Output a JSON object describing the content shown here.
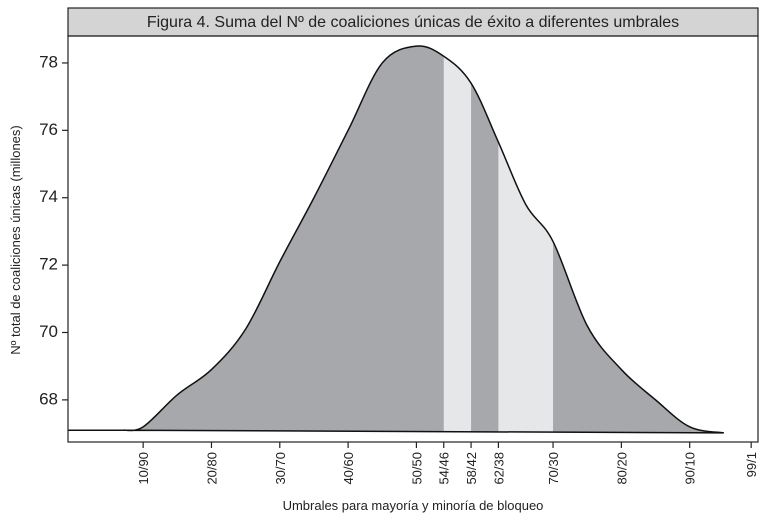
{
  "chart_data": {
    "type": "area",
    "title": "Figura 4. Suma del Nº de coaliciones únicas de éxito a diferentes umbrales",
    "x_label": "Umbrales para mayoría y minoría de bloqueo",
    "y_label": "Nº total de coaliciones  únicas (millones)",
    "x": [
      7,
      10,
      15,
      20,
      25,
      30,
      35,
      40,
      45,
      50,
      54,
      58,
      62,
      66,
      70,
      75,
      80,
      85,
      90,
      95
    ],
    "values": [
      67.1,
      67.2,
      68.15,
      68.9,
      70.1,
      72.1,
      74.0,
      76.0,
      78.0,
      78.5,
      78.2,
      77.4,
      75.65,
      73.8,
      72.7,
      70.2,
      68.9,
      68.0,
      67.2,
      67.02
    ],
    "color": "#a7a8ab",
    "highlight_ranges": [
      [
        54,
        58
      ],
      [
        62,
        70
      ]
    ],
    "highlight_color": "#e6e7e9",
    "xlim": [
      -1,
      100
    ],
    "ylim": [
      66.75,
      78.8
    ],
    "xticks": [
      {
        "value": 10,
        "label": "10/90"
      },
      {
        "value": 20,
        "label": "20/80"
      },
      {
        "value": 30,
        "label": "30/70"
      },
      {
        "value": 40,
        "label": "40/60"
      },
      {
        "value": 50,
        "label": "50/50"
      },
      {
        "value": 54,
        "label": "54/46"
      },
      {
        "value": 58,
        "label": "58/42"
      },
      {
        "value": 62,
        "label": "62/38"
      },
      {
        "value": 70,
        "label": "70/30"
      },
      {
        "value": 80,
        "label": "80/20"
      },
      {
        "value": 90,
        "label": "90/10"
      },
      {
        "value": 99,
        "label": "99/1"
      }
    ],
    "yticks": [
      68,
      70,
      72,
      74,
      76,
      78
    ]
  }
}
